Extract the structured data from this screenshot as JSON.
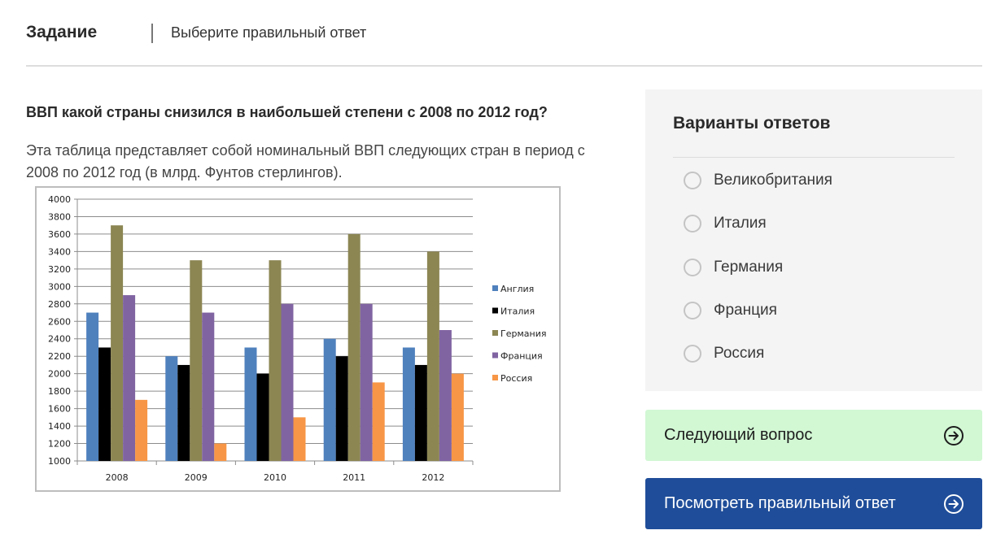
{
  "header": {
    "title": "Задание",
    "subtitle": "Выберите правильный ответ"
  },
  "question": {
    "text": "ВВП какой страны снизился в наибольшей степени с 2008 по 2012 год?",
    "description": "Эта таблица представляет собой номинальный ВВП следующих стран в период с 2008 по 2012 год (в млрд. Фунтов стерлингов)."
  },
  "answers": {
    "title": "Варианты ответов",
    "options": [
      {
        "label": "Великобритания",
        "selected": false
      },
      {
        "label": "Италия",
        "selected": false
      },
      {
        "label": "Германия",
        "selected": false
      },
      {
        "label": "Франция",
        "selected": false
      },
      {
        "label": "Россия",
        "selected": false
      }
    ]
  },
  "buttons": {
    "next_label": "Следующий вопрос",
    "next_icon": "arrow-right-circle-icon",
    "show_answer_label": "Посмотреть правильный ответ",
    "show_answer_icon": "arrow-right-circle-icon"
  },
  "colors": {
    "next_button_bg": "#d1f7d3",
    "show_button_bg": "#1f4d99",
    "panel_bg": "#f4f4f4"
  },
  "chart_data": {
    "type": "bar",
    "title": "",
    "xlabel": "",
    "ylabel": "",
    "categories": [
      "2008",
      "2009",
      "2010",
      "2011",
      "2012"
    ],
    "series": [
      {
        "name": "Англия",
        "color": "#4f81bd",
        "values": [
          2700,
          2200,
          2300,
          2400,
          2300
        ]
      },
      {
        "name": "Италия",
        "color": "#000000",
        "values": [
          2300,
          2100,
          2000,
          2200,
          2100
        ]
      },
      {
        "name": "Германия",
        "color": "#8c8653",
        "values": [
          3700,
          3300,
          3300,
          3600,
          3400
        ]
      },
      {
        "name": "Франция",
        "color": "#8064a2",
        "values": [
          2900,
          2700,
          2800,
          2800,
          2500
        ]
      },
      {
        "name": "Россия",
        "color": "#f79646",
        "values": [
          1700,
          1200,
          1500,
          1900,
          2000
        ]
      }
    ],
    "ylim": [
      1000,
      4000
    ],
    "yticks": [
      1000,
      1200,
      1400,
      1600,
      1800,
      2000,
      2200,
      2400,
      2600,
      2800,
      3000,
      3200,
      3400,
      3600,
      3800,
      4000
    ],
    "grid": true,
    "legend_position": "right"
  }
}
